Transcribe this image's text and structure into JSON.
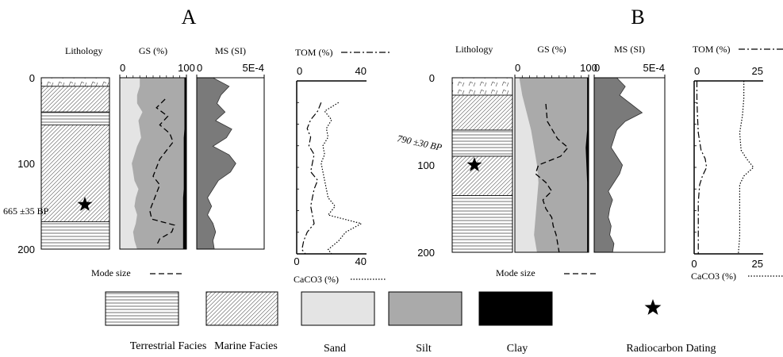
{
  "panels": [
    {
      "letter": "A",
      "lithology_label": "Lithology",
      "gs_label": "GS (%)",
      "ms_label": "MS (SI)",
      "tom_label": "TOM (%)",
      "caco3_label": "CaCO3 (%)",
      "mode_label": "Mode size",
      "depth_ticks": [
        "0",
        "100",
        "200"
      ],
      "gs_ticks": [
        "0",
        "100"
      ],
      "ms_ticks": [
        "0",
        "5E-4"
      ],
      "tom_ticks": [
        "0",
        "40"
      ],
      "caco3_ticks": [
        "0",
        "40"
      ],
      "dating_label": "665 ±35 BP"
    },
    {
      "letter": "B",
      "lithology_label": "Lithology",
      "gs_label": "GS (%)",
      "ms_label": "MS (SI)",
      "tom_label": "TOM (%)",
      "caco3_label": "CaCO3 (%)",
      "mode_label": "Mode size",
      "depth_ticks": [
        "0",
        "100",
        "200"
      ],
      "gs_ticks": [
        "0",
        "100"
      ],
      "ms_ticks": [
        "0",
        "5E-4"
      ],
      "tom_ticks": [
        "0",
        "25"
      ],
      "caco3_ticks": [
        "0",
        "25"
      ],
      "dating_label": "790 ±30 BP"
    }
  ],
  "legend": [
    {
      "label": "Terrestrial Facies",
      "pattern": "terrestrial"
    },
    {
      "label": "Marine Facies",
      "pattern": "marine"
    },
    {
      "label": "Sand",
      "pattern": "sand"
    },
    {
      "label": "Silt",
      "pattern": "silt"
    },
    {
      "label": "Clay",
      "pattern": "clay"
    },
    {
      "label": "Radiocarbon Dating",
      "pattern": "star"
    }
  ],
  "colors": {
    "sand": "#e4e4e4",
    "silt": "#aaaaaa",
    "clay": "#000000",
    "ms_fill": "#7a7a7a"
  },
  "chart_data": [
    {
      "type": "area",
      "panel": "A",
      "depth_range": [
        0,
        200
      ],
      "gs_range": [
        0,
        100
      ],
      "ms_range": [
        0,
        0.0005
      ],
      "tom_range": [
        0,
        40
      ],
      "caco3_range": [
        0,
        40
      ],
      "lithology": [
        {
          "from": 0,
          "to": 10,
          "facies": "terrestrial-top"
        },
        {
          "from": 10,
          "to": 40,
          "facies": "marine"
        },
        {
          "from": 40,
          "to": 55,
          "facies": "terrestrial"
        },
        {
          "from": 55,
          "to": 168,
          "facies": "marine"
        },
        {
          "from": 168,
          "to": 200,
          "facies": "terrestrial"
        }
      ],
      "dating_depth": 148,
      "gs_depth": [
        10,
        20,
        30,
        40,
        50,
        60,
        70,
        80,
        90,
        100,
        110,
        120,
        130,
        140,
        150,
        160,
        170,
        180,
        190,
        200
      ],
      "gs_sand": [
        30,
        26,
        26,
        34,
        28,
        30,
        32,
        26,
        22,
        18,
        20,
        22,
        28,
        24,
        22,
        26,
        24,
        20,
        22,
        26
      ],
      "gs_clay": [
        97,
        97,
        97,
        97,
        97,
        97,
        96,
        96,
        96,
        96,
        96,
        96,
        96,
        95,
        95,
        95,
        95,
        95,
        95,
        95
      ],
      "mode_depth": [
        25,
        35,
        45,
        55,
        65,
        75,
        85,
        95,
        105,
        115,
        125,
        135,
        145,
        155,
        165,
        172,
        180,
        188,
        196
      ],
      "mode_size": [
        68,
        55,
        72,
        60,
        75,
        80,
        70,
        60,
        55,
        50,
        60,
        55,
        50,
        45,
        48,
        82,
        78,
        60,
        55
      ],
      "ms_depth": [
        0,
        10,
        20,
        30,
        40,
        50,
        60,
        70,
        80,
        90,
        100,
        110,
        120,
        130,
        140,
        150,
        160,
        170,
        180,
        190,
        200
      ],
      "ms_value": [
        0.00012,
        0.00024,
        0.00018,
        0.00015,
        0.00021,
        0.00014,
        0.00026,
        0.00022,
        0.00012,
        0.00024,
        0.00029,
        0.00025,
        0.00016,
        0.00012,
        8e-05,
        0.00011,
        8e-05,
        0.00012,
        0.00014,
        0.00012,
        0.00013
      ],
      "tom_depth": [
        25,
        35,
        45,
        55,
        65,
        75,
        85,
        95,
        105,
        115,
        125,
        135,
        145,
        155,
        165,
        175,
        185,
        195,
        200
      ],
      "tom_value": [
        14,
        12,
        8,
        6,
        8,
        7,
        10,
        9,
        8,
        12,
        10,
        9,
        8,
        9,
        10,
        6,
        4,
        3,
        5
      ],
      "caco3_depth": [
        25,
        35,
        45,
        55,
        65,
        75,
        85,
        95,
        105,
        115,
        125,
        135,
        145,
        155,
        165,
        175,
        185,
        195,
        200
      ],
      "caco3_value": [
        24,
        16,
        20,
        17,
        18,
        15,
        16,
        14,
        15,
        16,
        17,
        18,
        22,
        18,
        37,
        28,
        24,
        18,
        20
      ]
    },
    {
      "type": "area",
      "panel": "B",
      "depth_range": [
        0,
        200
      ],
      "gs_range": [
        0,
        100
      ],
      "ms_range": [
        0,
        0.0005
      ],
      "tom_range": [
        0,
        25
      ],
      "caco3_range": [
        0,
        25
      ],
      "lithology": [
        {
          "from": 0,
          "to": 20,
          "facies": "terrestrial-top"
        },
        {
          "from": 20,
          "to": 60,
          "facies": "marine"
        },
        {
          "from": 60,
          "to": 90,
          "facies": "terrestrial"
        },
        {
          "from": 90,
          "to": 135,
          "facies": "marine"
        },
        {
          "from": 135,
          "to": 200,
          "facies": "terrestrial"
        }
      ],
      "dating_depth": 100,
      "gs_depth": [
        0,
        20,
        40,
        60,
        80,
        100,
        120,
        140,
        160,
        180,
        200
      ],
      "gs_sand": [
        6,
        10,
        16,
        22,
        26,
        30,
        32,
        30,
        28,
        26,
        30
      ],
      "gs_clay": [
        98,
        98,
        98,
        98,
        96,
        97,
        98,
        98,
        98,
        98,
        98
      ],
      "mode_depth": [
        30,
        50,
        70,
        80,
        90,
        100,
        110,
        120,
        130,
        140,
        150,
        160,
        170,
        180,
        190,
        200
      ],
      "mode_size": [
        42,
        44,
        58,
        72,
        62,
        32,
        28,
        42,
        50,
        38,
        42,
        50,
        52,
        56,
        58,
        60
      ],
      "ms_depth": [
        0,
        10,
        20,
        30,
        40,
        50,
        60,
        70,
        80,
        90,
        100,
        110,
        120,
        130,
        140,
        150,
        160,
        170,
        180,
        190,
        200
      ],
      "ms_value": [
        0.00016,
        0.00022,
        0.00018,
        0.00026,
        0.00034,
        0.00022,
        0.00016,
        0.00014,
        0.00012,
        0.00016,
        0.0002,
        0.00018,
        0.00014,
        0.0001,
        0.00013,
        0.00011,
        0.0001,
        0.00012,
        0.00011,
        0.00014,
        0.00013
      ],
      "tom_depth": [
        0,
        20,
        40,
        60,
        80,
        90,
        100,
        110,
        120,
        140,
        160,
        180,
        200
      ],
      "tom_value": [
        1,
        1,
        1.2,
        1.5,
        2.5,
        4,
        4.5,
        3,
        2,
        1.5,
        1.5,
        1.5,
        1.5
      ],
      "caco3_depth": [
        0,
        20,
        40,
        60,
        80,
        90,
        100,
        110,
        120,
        140,
        160,
        180,
        200
      ],
      "caco3_value": [
        18,
        18,
        17.5,
        16.5,
        17,
        19,
        21.5,
        18,
        16.5,
        16.5,
        16.5,
        16.5,
        16
      ]
    }
  ]
}
